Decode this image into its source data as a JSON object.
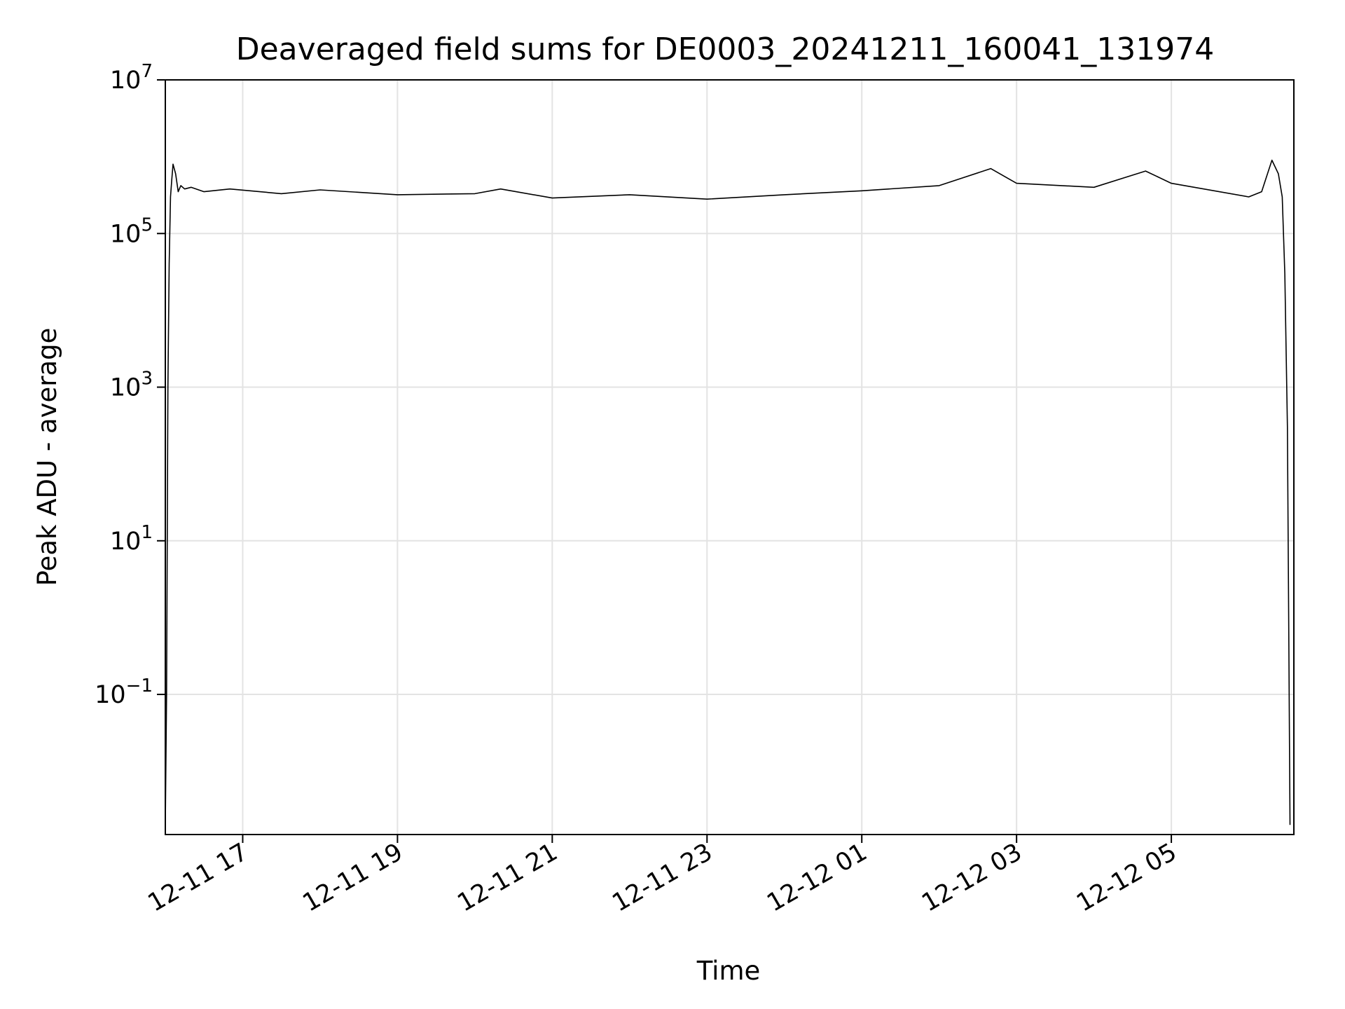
{
  "chart_data": {
    "type": "line",
    "title": "Deaveraged field sums for DE0003_20241211_160041_131974",
    "xlabel": "Time",
    "ylabel": "Peak ADU - average",
    "yscale": "log",
    "grid": true,
    "xlim": [
      "2024-12-11 16:00",
      "2024-12-12 06:35"
    ],
    "ylim": [
      0.0015,
      10000000
    ],
    "xticks": [
      {
        "value": "2024-12-11 17:00",
        "label": "12-11 17"
      },
      {
        "value": "2024-12-11 19:00",
        "label": "12-11 19"
      },
      {
        "value": "2024-12-11 21:00",
        "label": "12-11 21"
      },
      {
        "value": "2024-12-11 23:00",
        "label": "12-11 23"
      },
      {
        "value": "2024-12-12 01:00",
        "label": "12-12 01"
      },
      {
        "value": "2024-12-12 03:00",
        "label": "12-12 03"
      },
      {
        "value": "2024-12-12 05:00",
        "label": "12-12 05"
      }
    ],
    "yticks": [
      {
        "value": 10000000,
        "base": "10",
        "exp": "7"
      },
      {
        "value": 100000,
        "base": "10",
        "exp": "5"
      },
      {
        "value": 1000,
        "base": "10",
        "exp": "3"
      },
      {
        "value": 10,
        "base": "10",
        "exp": "1"
      },
      {
        "value": 0.1,
        "base": "10",
        "exp": "−1"
      }
    ],
    "series": [
      {
        "color": "#000000",
        "x": [
          "2024-12-11 16:00",
          "2024-12-11 16:01",
          "2024-12-11 16:02",
          "2024-12-11 16:03",
          "2024-12-11 16:04",
          "2024-12-11 16:05",
          "2024-12-11 16:06",
          "2024-12-11 16:08",
          "2024-12-11 16:10",
          "2024-12-11 16:12",
          "2024-12-11 16:15",
          "2024-12-11 16:20",
          "2024-12-11 16:30",
          "2024-12-11 16:50",
          "2024-12-11 17:30",
          "2024-12-11 18:00",
          "2024-12-11 19:00",
          "2024-12-11 20:00",
          "2024-12-11 20:20",
          "2024-12-11 21:00",
          "2024-12-11 22:00",
          "2024-12-11 23:00",
          "2024-12-12 00:00",
          "2024-12-12 01:00",
          "2024-12-12 02:00",
          "2024-12-12 02:40",
          "2024-12-12 03:00",
          "2024-12-12 04:00",
          "2024-12-12 04:40",
          "2024-12-12 05:00",
          "2024-12-12 06:00",
          "2024-12-12 06:10",
          "2024-12-12 06:18",
          "2024-12-12 06:23",
          "2024-12-12 06:26",
          "2024-12-12 06:28",
          "2024-12-12 06:30",
          "2024-12-12 06:31",
          "2024-12-12 06:32"
        ],
        "y": [
          0.002,
          0.1,
          1000,
          40000,
          300000,
          500000,
          800000,
          600000,
          350000,
          420000,
          380000,
          400000,
          350000,
          380000,
          330000,
          370000,
          320000,
          330000,
          380000,
          290000,
          320000,
          280000,
          320000,
          360000,
          420000,
          700000,
          450000,
          400000,
          650000,
          450000,
          300000,
          350000,
          900000,
          600000,
          300000,
          30000,
          300,
          1,
          0.002
        ]
      }
    ]
  }
}
